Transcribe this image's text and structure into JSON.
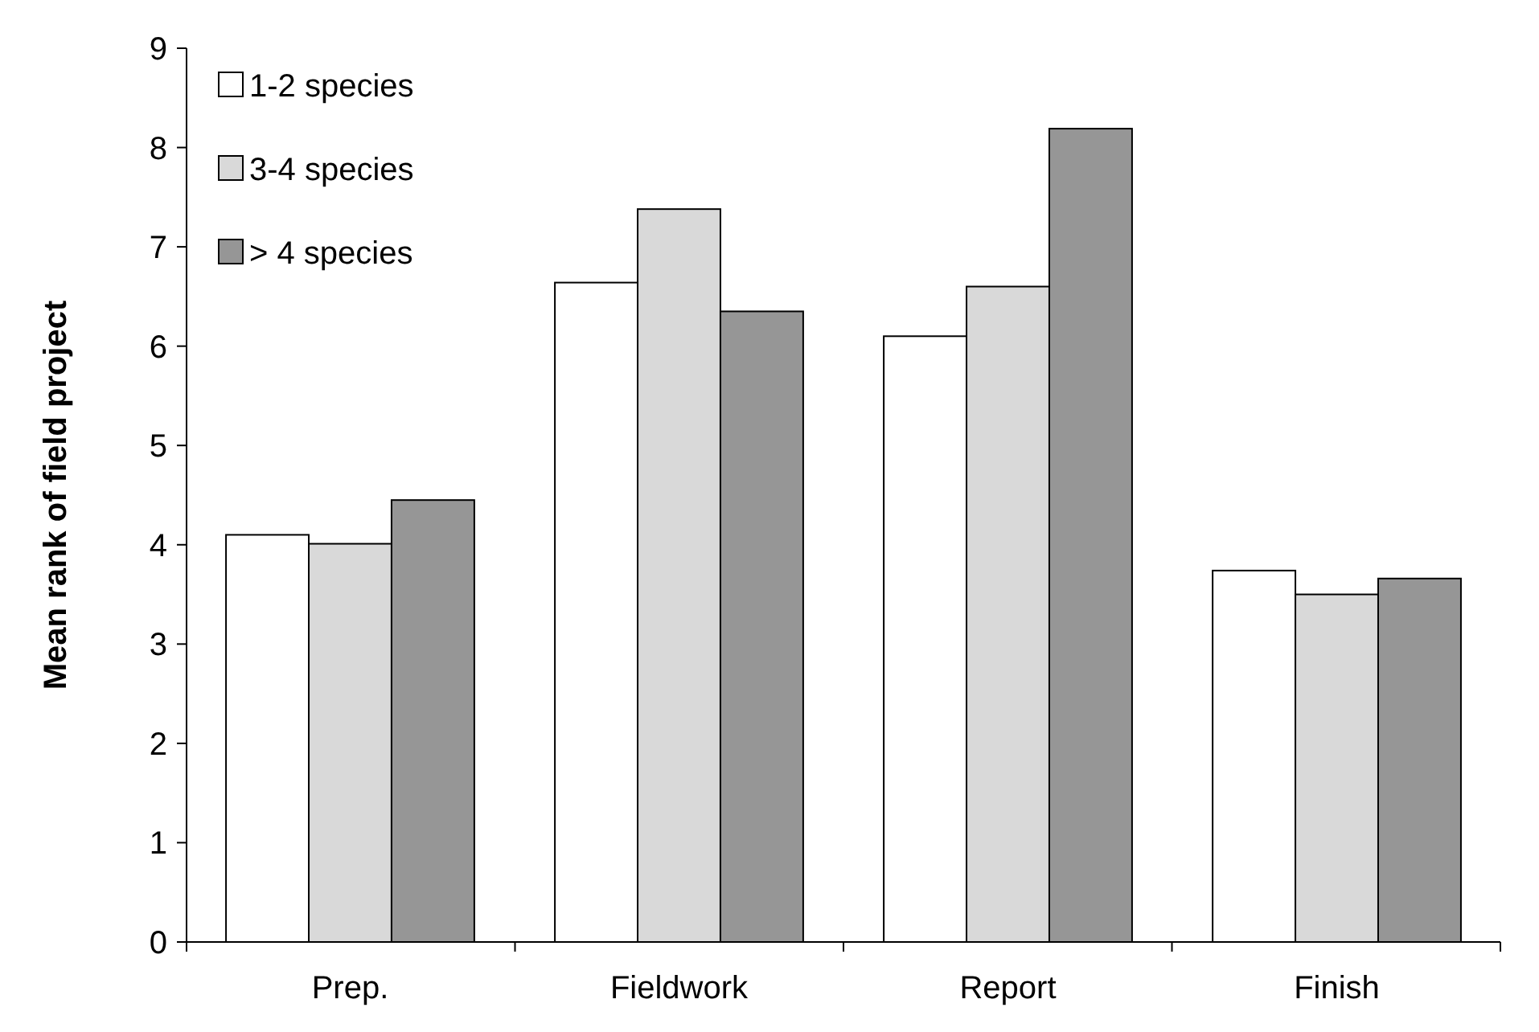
{
  "chart_data": {
    "type": "bar",
    "ylabel": "Mean rank of field project",
    "categories": [
      "Prep.",
      "Fieldwork",
      "Report",
      "Finish"
    ],
    "series": [
      {
        "name": "1-2 species",
        "color": "#ffffff",
        "values": [
          4.1,
          6.64,
          6.1,
          3.74
        ]
      },
      {
        "name": "3-4 species",
        "color": "#d9d9d9",
        "values": [
          4.01,
          7.38,
          6.6,
          3.5
        ]
      },
      {
        "name": "> 4 species",
        "color": "#969696",
        "values": [
          4.45,
          6.35,
          8.19,
          3.66
        ]
      }
    ],
    "ylim": [
      0,
      9
    ],
    "yticks": [
      0,
      1,
      2,
      3,
      4,
      5,
      6,
      7,
      8,
      9
    ],
    "grid": false,
    "legend": "top left"
  }
}
